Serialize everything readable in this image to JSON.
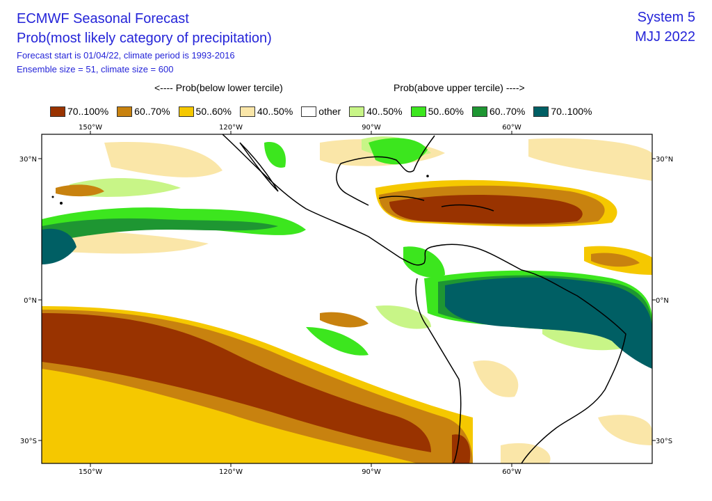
{
  "header": {
    "title": "ECMWF Seasonal Forecast",
    "subtitle": "Prob(most likely category of precipitation)",
    "forecast_info": "Forecast start is 01/04/22, climate period is 1993-2016",
    "ensemble_info": "Ensemble size = 51, climate size = 600",
    "system": "System 5",
    "period": "MJJ 2022"
  },
  "legend": {
    "below_header": "<---- Prob(below lower tercile)",
    "above_header": "Prob(above upper tercile) ---->",
    "items": [
      {
        "label": "70..100%",
        "color": "#993300"
      },
      {
        "label": "60..70%",
        "color": "#c8820f"
      },
      {
        "label": "50..60%",
        "color": "#f5c800"
      },
      {
        "label": "40..50%",
        "color": "#fae6a8"
      },
      {
        "label": "other",
        "color": "#ffffff"
      },
      {
        "label": "40..50%",
        "color": "#c8f587"
      },
      {
        "label": "50..60%",
        "color": "#3ce61e"
      },
      {
        "label": "60..70%",
        "color": "#1e9632"
      },
      {
        "label": "70..100%",
        "color": "#005f64"
      }
    ]
  },
  "axes": {
    "lon_labels": [
      "150°W",
      "120°W",
      "90°W",
      "60°W"
    ],
    "lat_labels": [
      "30°N",
      "0°N",
      "30°S"
    ]
  }
}
